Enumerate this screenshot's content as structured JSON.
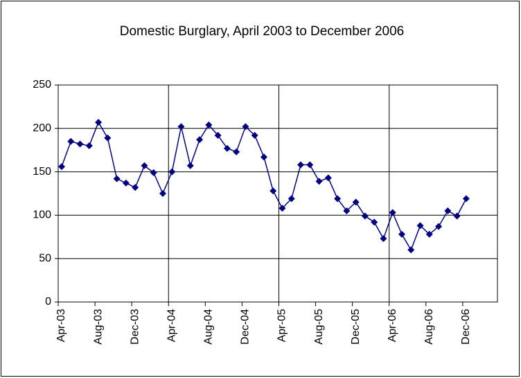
{
  "chart_data": {
    "type": "line",
    "title": "Domestic Burglary, April 2003 to December 2006",
    "categories": [
      "Apr-03",
      null,
      null,
      null,
      "Aug-03",
      null,
      null,
      null,
      "Dec-03",
      null,
      null,
      null,
      "Apr-04",
      null,
      null,
      null,
      "Aug-04",
      null,
      null,
      null,
      "Dec-04",
      null,
      null,
      null,
      "Apr-05",
      null,
      null,
      null,
      "Aug-05",
      null,
      null,
      null,
      "Dec-05",
      null,
      null,
      null,
      "Apr-06",
      null,
      null,
      null,
      "Aug-06",
      null,
      null,
      null,
      "Dec-06"
    ],
    "series": [
      {
        "name": "Domestic Burglary",
        "color": "#000080",
        "values": [
          156,
          185,
          182,
          180,
          207,
          189,
          142,
          137,
          132,
          157,
          149,
          125,
          150,
          202,
          157,
          187,
          204,
          192,
          177,
          173,
          202,
          192,
          167,
          128,
          108,
          119,
          158,
          158,
          139,
          143,
          119,
          105,
          115,
          99,
          92,
          73,
          103,
          78,
          60,
          88,
          78,
          87,
          105,
          99,
          119
        ]
      }
    ],
    "ylim": [
      0,
      250
    ],
    "yticks": [
      0,
      50,
      100,
      150,
      200,
      250
    ],
    "grid": true
  }
}
